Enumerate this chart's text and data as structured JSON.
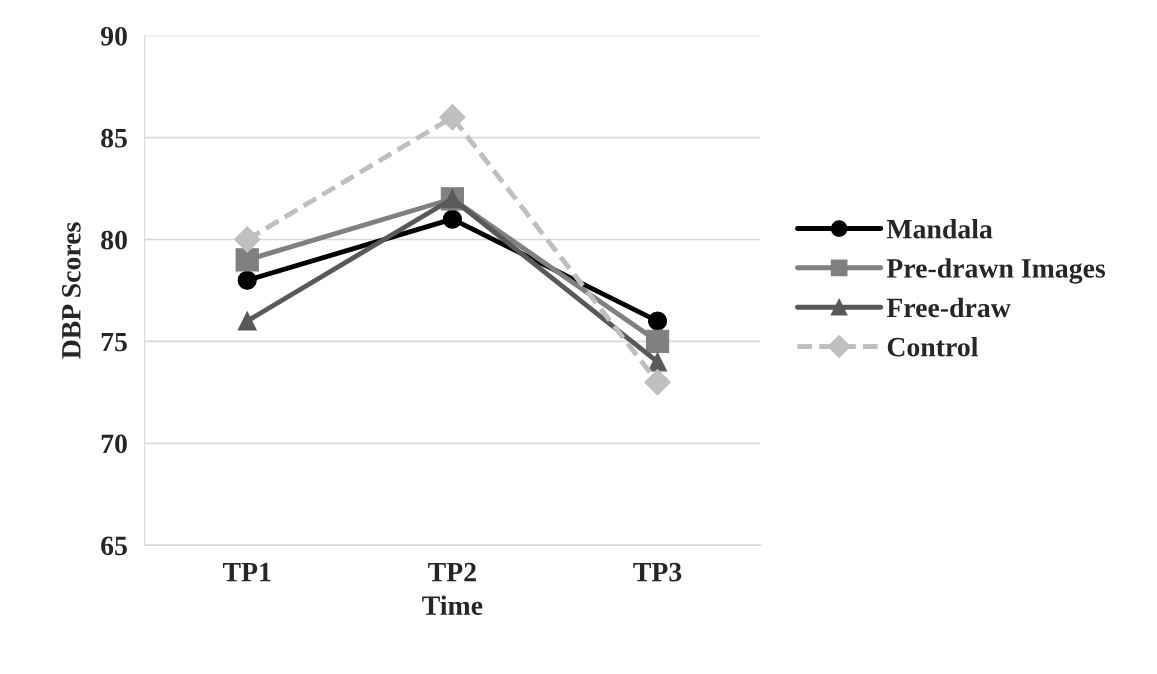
{
  "chart_data": {
    "type": "line",
    "xlabel": "Time",
    "ylabel": "DBP Scores",
    "categories": [
      "TP1",
      "TP2",
      "TP3"
    ],
    "series": [
      {
        "name": "Mandala",
        "color": "#000000",
        "values": [
          78,
          81,
          76
        ],
        "marker": "circle",
        "line_style": "solid"
      },
      {
        "name": "Pre-drawn Images",
        "color": "#808080",
        "values": [
          79,
          82,
          75
        ],
        "marker": "square",
        "line_style": "solid"
      },
      {
        "name": "Free-draw",
        "color": "#595959",
        "values": [
          76,
          82,
          74
        ],
        "marker": "triangle",
        "line_style": "solid"
      },
      {
        "name": "Control",
        "color": "#bfbfbf",
        "values": [
          80,
          86,
          73
        ],
        "marker": "diamond",
        "line_style": "dashed"
      }
    ],
    "ylim": [
      65,
      90
    ],
    "yticks": [
      65,
      70,
      75,
      80,
      85,
      90
    ],
    "grid": "y",
    "legend": "right"
  }
}
